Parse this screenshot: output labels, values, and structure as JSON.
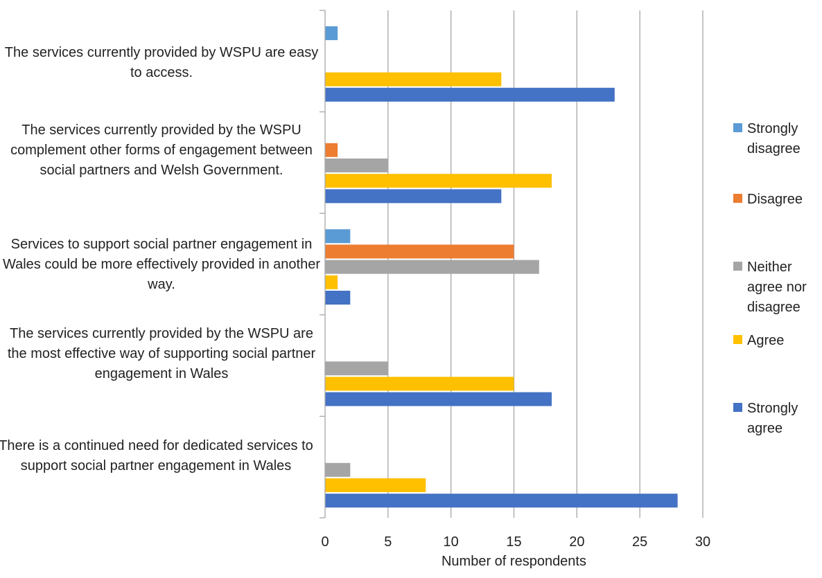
{
  "chart_data": {
    "type": "bar",
    "orientation": "horizontal",
    "categories": [
      "The services currently provided by WSPU are easy to access.",
      "The services currently provided by the WSPU complement other forms of engagement between social partners and Welsh Government.",
      "Services to support social partner engagement in Wales could be more effectively provided in another way.",
      "The services currently provided by the WSPU are the most effective way of supporting social partner engagement in Wales",
      "There is a continued need for dedicated services to support social partner engagement in Wales"
    ],
    "series": [
      {
        "name": "Strongly disagree",
        "color": "#5B9BD5",
        "values": [
          1,
          0,
          2,
          0,
          0
        ]
      },
      {
        "name": "Disagree",
        "color": "#ED7D31",
        "values": [
          0,
          1,
          15,
          0,
          0
        ]
      },
      {
        "name": "Neither agree nor disagree",
        "color": "#A5A5A5",
        "values": [
          0,
          5,
          17,
          5,
          2
        ]
      },
      {
        "name": "Agree",
        "color": "#FFC000",
        "values": [
          14,
          18,
          1,
          15,
          8
        ]
      },
      {
        "name": "Strongly agree",
        "color": "#4472C4",
        "values": [
          23,
          14,
          2,
          18,
          28
        ]
      }
    ],
    "xlabel": "Number of respondents",
    "xlim": [
      0,
      30
    ],
    "xticks": [
      "0",
      "5",
      "10",
      "15",
      "20",
      "25",
      "30"
    ],
    "grid": true,
    "legend_position": "right"
  }
}
